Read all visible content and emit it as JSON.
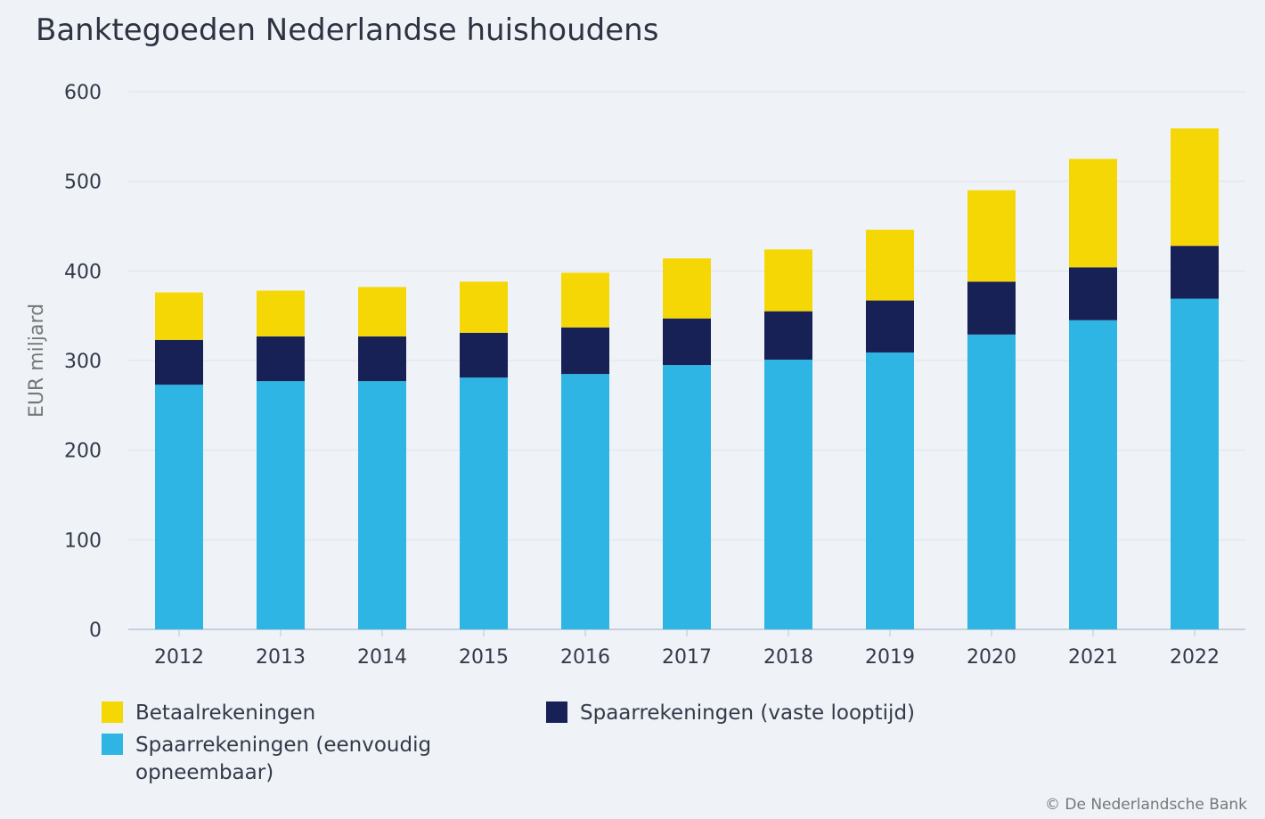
{
  "chart_data": {
    "type": "bar",
    "stacked": true,
    "title": "Banktegoeden Nederlandse huishoudens",
    "xlabel": "",
    "ylabel": "EUR miljard",
    "ylim": [
      0,
      600
    ],
    "yticks": [
      0,
      100,
      200,
      300,
      400,
      500,
      600
    ],
    "grid": true,
    "legend_position": "bottom",
    "categories": [
      "2012",
      "2013",
      "2014",
      "2015",
      "2016",
      "2017",
      "2018",
      "2019",
      "2020",
      "2021",
      "2022"
    ],
    "series": [
      {
        "name": "Spaarrekeningen (eenvoudig opneembaar)",
        "color": "#2eb5e3",
        "values": [
          273,
          277,
          277,
          281,
          285,
          295,
          301,
          309,
          329,
          345,
          369
        ]
      },
      {
        "name": "Spaarrekeningen (vaste looptijd)",
        "color": "#172156",
        "values": [
          50,
          50,
          50,
          50,
          52,
          52,
          54,
          58,
          59,
          59,
          59
        ]
      },
      {
        "name": "Betaalrekeningen",
        "color": "#f5d706",
        "values": [
          53,
          51,
          55,
          57,
          61,
          67,
          69,
          79,
          102,
          121,
          131
        ]
      }
    ]
  },
  "credit": "© De Nederlandsche Bank"
}
